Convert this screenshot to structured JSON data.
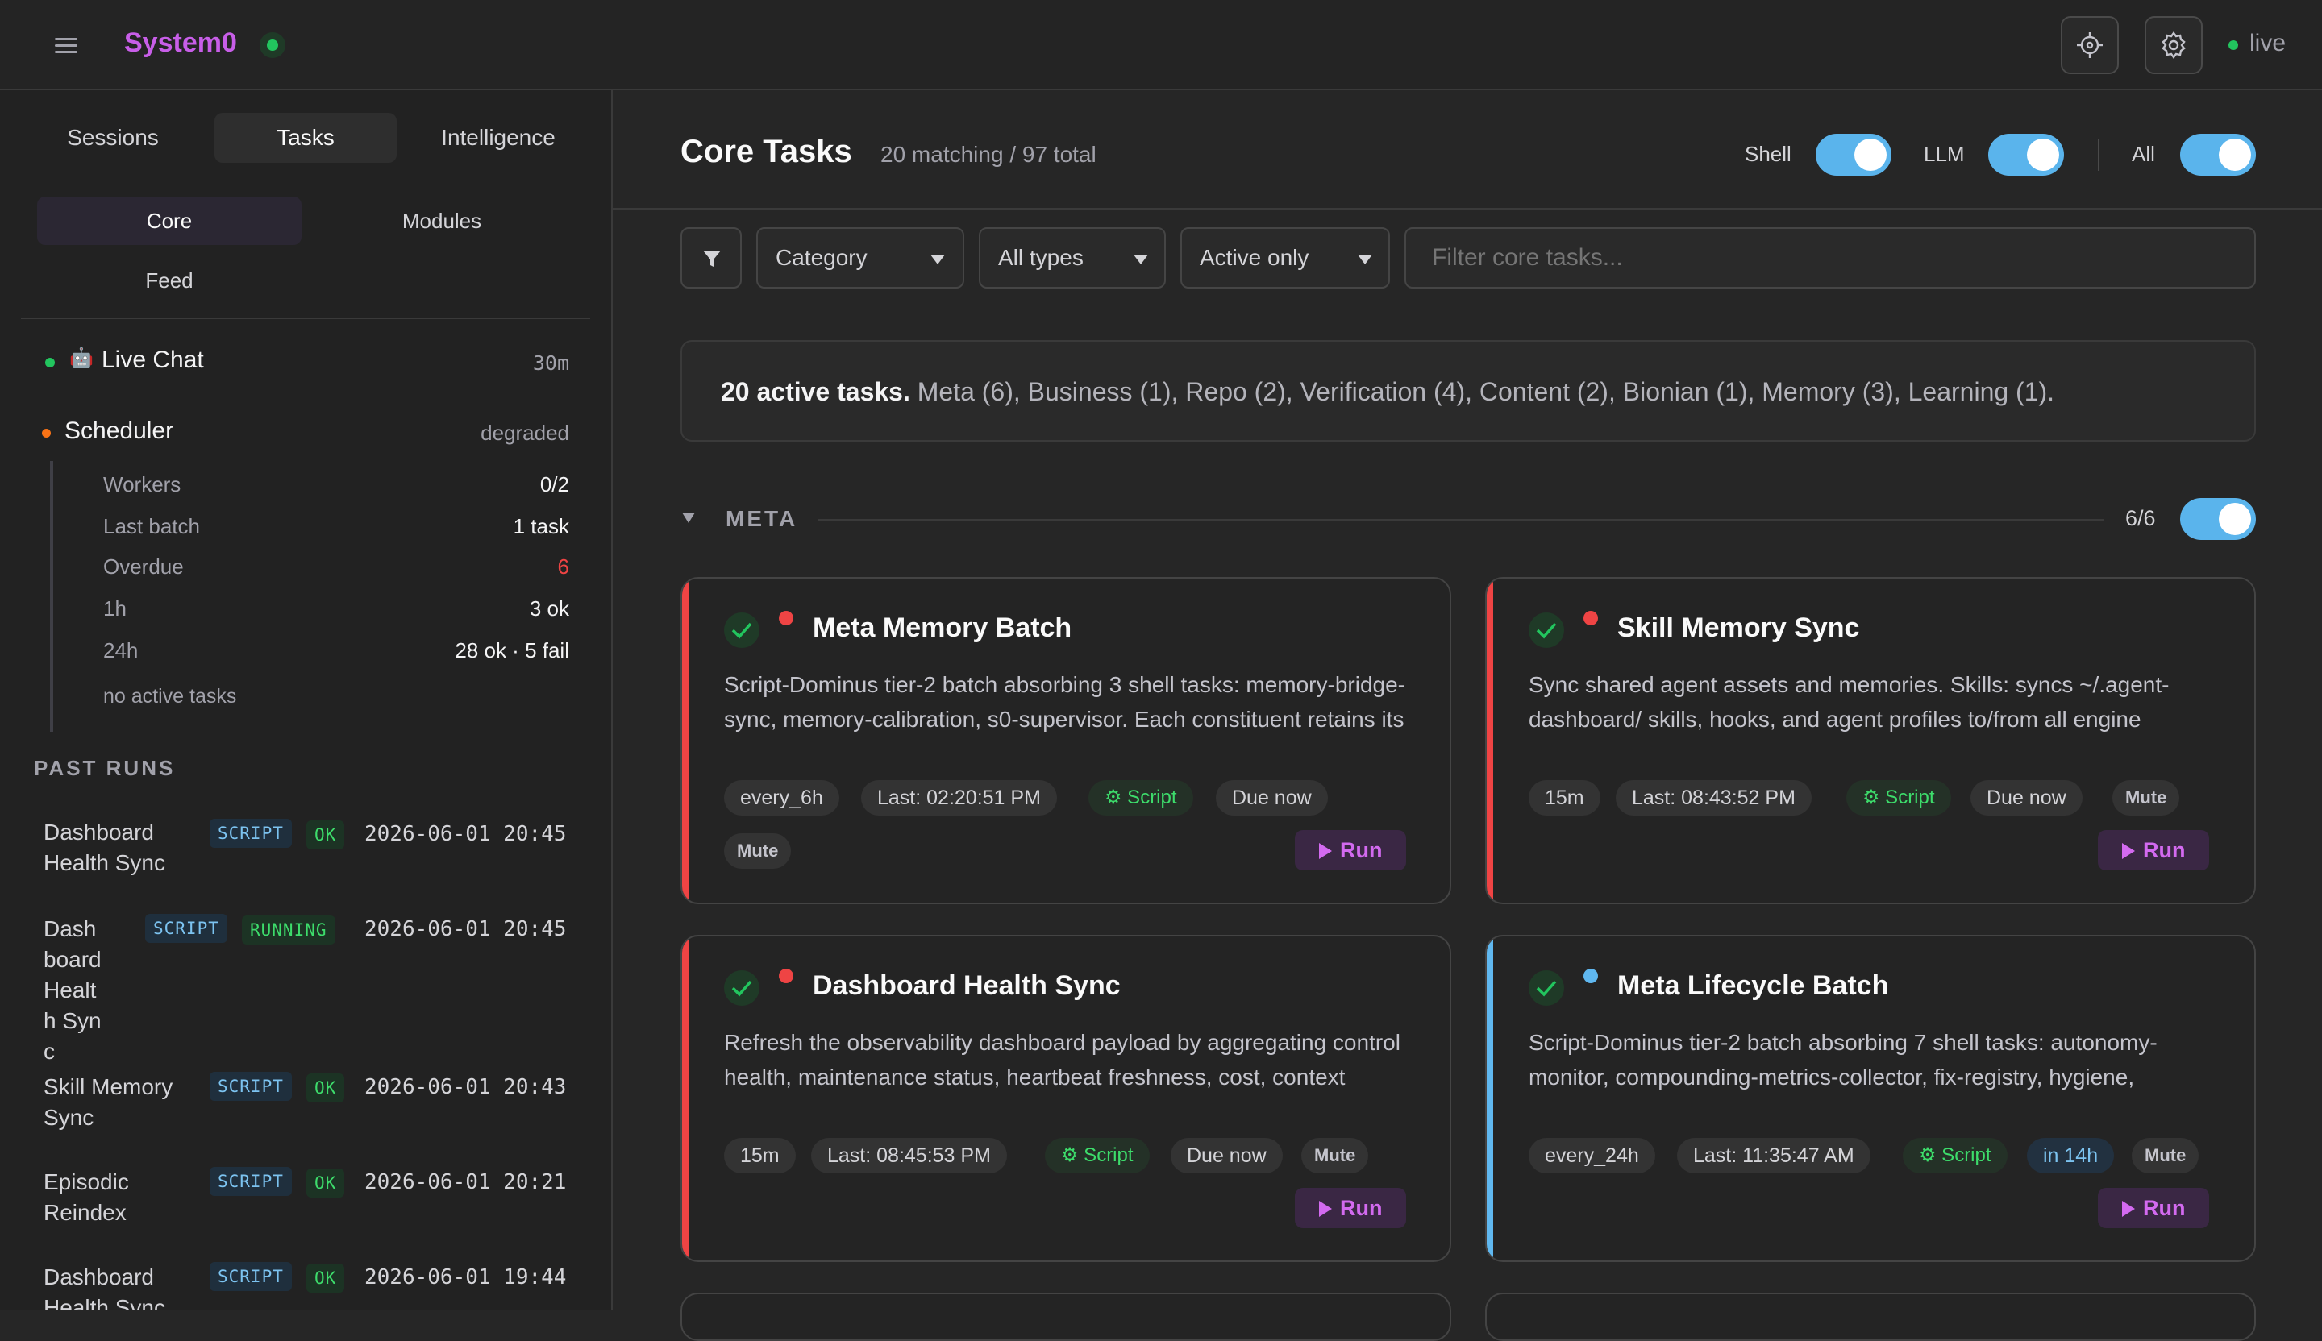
{
  "app": {
    "title": "System0",
    "live_label": "live"
  },
  "icons": {
    "menu": "menu-icon",
    "target": "crosshair-icon",
    "settings": "gear-icon"
  },
  "colors": {
    "accent": "#c85ee8",
    "toggle_on": "#5ab4ec",
    "ok": "#22c55e",
    "error": "#ef4444",
    "warning": "#f97316",
    "info": "#60b8f0"
  },
  "sidebar": {
    "tabs": [
      "Sessions",
      "Tasks",
      "Intelligence"
    ],
    "active_tab": "Tasks",
    "subtabs": [
      "Core",
      "Modules",
      "Feed"
    ],
    "active_subtab": "Core",
    "live_chat": {
      "icon": "🤖",
      "label": "Live Chat",
      "age": "30m"
    },
    "scheduler": {
      "label": "Scheduler",
      "status": "degraded",
      "rows": [
        {
          "label": "Workers",
          "value": "0/2"
        },
        {
          "label": "Last batch",
          "value": "1 task"
        },
        {
          "label": "Overdue",
          "value": "6"
        },
        {
          "label": "1h",
          "value": "3 ok"
        },
        {
          "label": "24h",
          "value": "28 ok · 5 fail"
        }
      ],
      "note": "no active tasks"
    },
    "past_runs_title": "PAST RUNS",
    "past_runs": [
      {
        "name": "Dashboard Health Sync",
        "type": "SCRIPT",
        "status": "OK",
        "time": "2026-06-01 20:45"
      },
      {
        "name": "Dashboard Health Sync",
        "type": "SCRIPT",
        "status": "RUNNING",
        "time": "2026-06-01 20:45"
      },
      {
        "name": "Skill Memory Sync",
        "type": "SCRIPT",
        "status": "OK",
        "time": "2026-06-01 20:43"
      },
      {
        "name": "Episodic Reindex",
        "type": "SCRIPT",
        "status": "OK",
        "time": "2026-06-01 20:21"
      },
      {
        "name": "Dashboard Health Sync",
        "type": "SCRIPT",
        "status": "OK",
        "time": "2026-06-01 19:44"
      }
    ]
  },
  "main": {
    "title": "Core Tasks",
    "subtitle": "20 matching / 97 total",
    "toggles": [
      {
        "label": "Shell",
        "on": true
      },
      {
        "label": "LLM",
        "on": true
      },
      {
        "label": "All",
        "on": true
      }
    ],
    "filters": {
      "category": "Category",
      "types": "All types",
      "active": "Active only",
      "search_placeholder": "Filter core tasks..."
    },
    "summary_bold": "20 active tasks.",
    "summary_rest": " Meta (6), Business (1), Repo (2), Verification (4), Content (2), Bionian (1), Memory (3), Learning (1).",
    "group": {
      "title": "META",
      "count": "6/6"
    },
    "run_label": "Run",
    "mute_label": "Mute",
    "cards": [
      {
        "title": "Meta Memory Batch",
        "desc": "Script-Dominus tier-2 batch absorbing 3 shell tasks: memory-bridge-sync, memory-calibration, s0-supervisor. Each constituent retains its own outcome file at",
        "schedule": "every_6h",
        "last": "Last: 02:20:51 PM",
        "kind": "⚙ Script",
        "due": "Due now"
      },
      {
        "title": "Skill Memory Sync",
        "desc": "Sync shared agent assets and memories. Skills: syncs ~/.agent-dashboard/ skills, hooks, and agent profiles to/from all engine directories (Claude, Codex, Gemini). Creates",
        "schedule": "15m",
        "last": "Last: 08:43:52 PM",
        "kind": "⚙ Script",
        "due": "Due now"
      },
      {
        "title": "Dashboard Health Sync",
        "desc": "Refresh the observability dashboard payload by aggregating control health, maintenance status, heartbeat freshness, cost, context budget, and autonomous decisions into",
        "schedule": "15m",
        "last": "Last: 08:45:53 PM",
        "kind": "⚙ Script",
        "due": "Due now"
      },
      {
        "title": "Meta Lifecycle Batch",
        "desc": "Script-Dominus tier-2 batch absorbing 7 shell tasks: autonomy-monitor, compounding-metrics-collector, fix-registry, hygiene, memory-breeding, reward-model-training",
        "schedule": "every_24h",
        "last": "Last: 11:35:47 AM",
        "kind": "⚙ Script",
        "due": "in 14h"
      }
    ]
  }
}
